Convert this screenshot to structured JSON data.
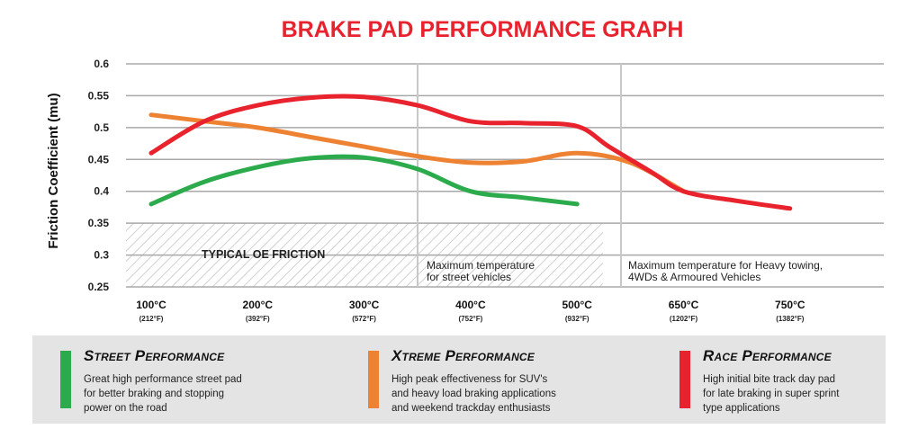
{
  "chart_data": {
    "type": "line",
    "title": "BRAKE PAD PERFORMANCE GRAPH",
    "title_color": "#e8232d",
    "ylabel": "Friction Coefficient (mu)",
    "ylim": [
      0.25,
      0.6
    ],
    "y_ticks": [
      "0.6",
      "0.55",
      "0.5",
      "0.45",
      "0.4",
      "0.35",
      "0.3",
      "0.25"
    ],
    "x_categories": [
      {
        "c": "100°C",
        "f": "(212°F)"
      },
      {
        "c": "200°C",
        "f": "(392°F)"
      },
      {
        "c": "300°C",
        "f": "(572°F)"
      },
      {
        "c": "400°C",
        "f": "(752°F)"
      },
      {
        "c": "500°C",
        "f": "(932°F)"
      },
      {
        "c": "650°C",
        "f": "(1202°F)"
      },
      {
        "c": "750°C",
        "f": "(1382°F)"
      }
    ],
    "grid": true,
    "shaded_band": {
      "label": "TYPICAL OE FRICTION",
      "y_range": [
        0.25,
        0.35
      ]
    },
    "annotations": [
      {
        "lines": [
          "Maximum temperature",
          "for street vehicles"
        ]
      },
      {
        "lines": [
          "Maximum temperature for Heavy towing,",
          "4WDs & Armoured Vehicles"
        ]
      }
    ],
    "series": [
      {
        "name": "Street Performance",
        "color": "#2bab4b",
        "x": [
          0,
          0.5,
          1,
          1.5,
          2,
          2.5,
          3,
          3.5,
          4
        ],
        "y": [
          0.38,
          0.415,
          0.438,
          0.452,
          0.453,
          0.435,
          0.4,
          0.39,
          0.38
        ]
      },
      {
        "name": "Xtreme Performance",
        "color": "#ee8233",
        "x": [
          0,
          0.5,
          1,
          1.5,
          2,
          2.5,
          3,
          3.5,
          4,
          4.5,
          5
        ],
        "y": [
          0.52,
          0.51,
          0.5,
          0.485,
          0.47,
          0.455,
          0.445,
          0.447,
          0.46,
          0.445,
          0.4
        ]
      },
      {
        "name": "Race Performance",
        "color": "#e8232d",
        "x": [
          0,
          0.5,
          1,
          1.5,
          2,
          2.5,
          3,
          3.5,
          4,
          4.3,
          4.7,
          5,
          5.5,
          6
        ],
        "y": [
          0.46,
          0.51,
          0.535,
          0.547,
          0.548,
          0.535,
          0.51,
          0.507,
          0.502,
          0.47,
          0.43,
          0.4,
          0.385,
          0.373
        ]
      }
    ]
  },
  "legend": [
    {
      "title": "Street Performance",
      "color": "#2bab4b",
      "lines": [
        "Great high performance street pad",
        "for better braking and stopping",
        "power on the road"
      ]
    },
    {
      "title": "Xtreme Performance",
      "color": "#ee8233",
      "lines": [
        "High peak effectiveness for SUV's",
        "and heavy load braking applications",
        "and weekend trackday enthusiasts"
      ]
    },
    {
      "title": "Race Performance",
      "color": "#e8232d",
      "lines": [
        "High initial bite track day pad",
        "for late braking in super sprint",
        "type applications"
      ]
    }
  ]
}
